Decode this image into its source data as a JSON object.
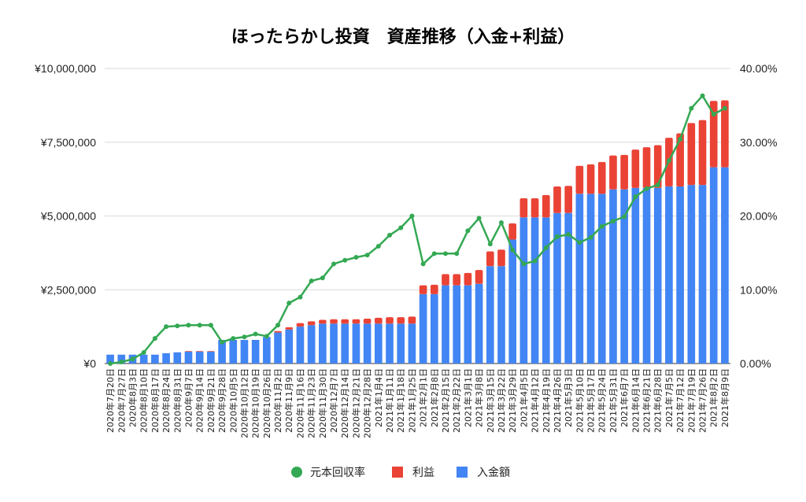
{
  "chart_data": {
    "type": "bar",
    "stacked": true,
    "title": "ほったらかし投資　資産推移（入金+利益）",
    "xlabel": "",
    "ylabel": "",
    "ylim": [
      0,
      10000000
    ],
    "y2lim": [
      0,
      40
    ],
    "grid": true,
    "legend_position": "bottom",
    "y_ticks": [
      "¥0",
      "¥2,500,000",
      "¥5,000,000",
      "¥7,500,000",
      "¥10,000,000"
    ],
    "y2_ticks": [
      "0.00%",
      "10.00%",
      "20.00%",
      "30.00%",
      "40.00%"
    ],
    "categories": [
      "2020年7月20日",
      "2020年7月27日",
      "2020年8月3日",
      "2020年8月10日",
      "2020年8月17日",
      "2020年8月24日",
      "2020年8月31日",
      "2020年9月7日",
      "2020年9月14日",
      "2020年9月21日",
      "2020年9月28日",
      "2020年10月5日",
      "2020年10月12日",
      "2020年10月19日",
      "2020年10月26日",
      "2020年11月2日",
      "2020年11月9日",
      "2020年11月16日",
      "2020年11月23日",
      "2020年11月30日",
      "2020年12月7日",
      "2020年12月14日",
      "2020年12月21日",
      "2020年12月28日",
      "2021年1月4日",
      "2021年1月11日",
      "2021年1月18日",
      "2021年1月25日",
      "2021年2月1日",
      "2021年2月8日",
      "2021年2月15日",
      "2021年2月22日",
      "2021年3月1日",
      "2021年3月8日",
      "2021年3月15日",
      "2021年3月22日",
      "2021年3月29日",
      "2021年4月5日",
      "2021年4月12日",
      "2021年4月19日",
      "2021年4月26日",
      "2021年5月3日",
      "2021年5月10日",
      "2021年5月17日",
      "2021年5月24日",
      "2021年5月31日",
      "2021年6月7日",
      "2021年6月14日",
      "2021年6月21日",
      "2021年6月28日",
      "2021年7月5日",
      "2021年7月12日",
      "2021年7月19日",
      "2021年7月26日",
      "2021年8月2日",
      "2021年8月9日"
    ],
    "series": [
      {
        "name": "入金額",
        "type": "bar",
        "axis": "left",
        "color": "#4285F4",
        "values": [
          300000,
          300000,
          300000,
          300000,
          300000,
          350000,
          380000,
          400000,
          400000,
          400000,
          800000,
          800000,
          800000,
          800000,
          900000,
          1050000,
          1150000,
          1250000,
          1300000,
          1350000,
          1350000,
          1350000,
          1350000,
          1350000,
          1350000,
          1350000,
          1350000,
          1350000,
          2350000,
          2350000,
          2650000,
          2650000,
          2650000,
          2700000,
          3300000,
          3300000,
          4200000,
          4950000,
          4950000,
          4950000,
          5100000,
          5100000,
          5750000,
          5750000,
          5750000,
          5900000,
          5900000,
          5950000,
          5950000,
          5950000,
          6000000,
          6000000,
          6050000,
          6050000,
          6650000,
          6650000
        ]
      },
      {
        "name": "利益",
        "type": "bar",
        "axis": "left",
        "color": "#EA4335",
        "values": [
          0,
          0,
          0,
          0,
          0,
          0,
          0,
          20000,
          20000,
          20000,
          0,
          0,
          0,
          0,
          0,
          50000,
          80000,
          120000,
          130000,
          130000,
          150000,
          150000,
          150000,
          170000,
          200000,
          220000,
          220000,
          240000,
          300000,
          320000,
          380000,
          380000,
          420000,
          470000,
          500000,
          560000,
          550000,
          650000,
          650000,
          760000,
          900000,
          920000,
          950000,
          1000000,
          1080000,
          1150000,
          1170000,
          1300000,
          1380000,
          1450000,
          1650000,
          1800000,
          2100000,
          2200000,
          2250000,
          2270000
        ]
      },
      {
        "name": "元本回収率",
        "type": "line",
        "axis": "right",
        "color": "#34A853",
        "values": [
          0.0,
          0.2,
          0.6,
          1.5,
          3.4,
          5.0,
          5.1,
          5.2,
          5.2,
          5.2,
          2.9,
          3.4,
          3.6,
          4.0,
          3.7,
          5.2,
          8.2,
          9.0,
          11.2,
          11.6,
          13.5,
          14.0,
          14.4,
          14.7,
          15.9,
          17.4,
          18.4,
          20.0,
          13.5,
          14.9,
          14.9,
          14.9,
          18.0,
          19.7,
          16.2,
          19.1,
          15.4,
          13.5,
          13.9,
          15.7,
          17.2,
          17.5,
          16.4,
          17.1,
          18.6,
          19.3,
          19.9,
          22.6,
          23.7,
          24.2,
          27.5,
          30.4,
          34.6,
          36.3,
          33.8,
          34.6
        ]
      }
    ]
  },
  "legend": [
    {
      "label": "元本回収率",
      "color": "#34A853",
      "shape": "circle"
    },
    {
      "label": "利益",
      "color": "#EA4335",
      "shape": "square"
    },
    {
      "label": "入金額",
      "color": "#4285F4",
      "shape": "square"
    }
  ]
}
